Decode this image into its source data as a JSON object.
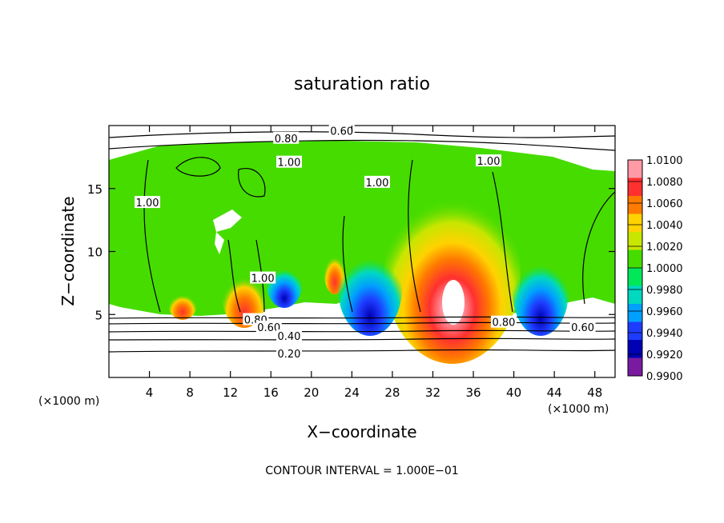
{
  "chart_data": {
    "type": "heatmap",
    "title": "saturation ratio",
    "xlabel": "X−coordinate",
    "ylabel": "Z−coordinate",
    "x_unit_label": "(×1000 m)",
    "x_unit_label_right": "(×1000 m)",
    "xlim": [
      0,
      50
    ],
    "ylim": [
      0,
      20
    ],
    "x_ticks": [
      4,
      8,
      12,
      16,
      20,
      24,
      28,
      32,
      36,
      40,
      44,
      48
    ],
    "y_ticks": [
      5,
      10,
      15
    ],
    "contour_interval_label": "CONTOUR INTERVAL = 1.000E−01",
    "colorbar": {
      "labels": [
        "1.0100",
        "1.0080",
        "1.0060",
        "1.0040",
        "1.0020",
        "1.0000",
        "0.9980",
        "0.9960",
        "0.9940",
        "0.9920",
        "0.9900"
      ],
      "colors": [
        "#ff9aa6",
        "#ff3030",
        "#ff7a00",
        "#ffd200",
        "#c8e600",
        "#46dc00",
        "#00e85a",
        "#00d8c0",
        "#00a0ff",
        "#1e3cff",
        "#0000b4",
        "#7a1aa0"
      ]
    },
    "contour_labels": [
      {
        "text": "0.60",
        "x": 23.0,
        "z": 19.6
      },
      {
        "text": "0.80",
        "x": 17.5,
        "z": 19.0
      },
      {
        "text": "1.00",
        "x": 17.8,
        "z": 17.1
      },
      {
        "text": "1.00",
        "x": 26.5,
        "z": 15.5
      },
      {
        "text": "1.00",
        "x": 37.5,
        "z": 17.2
      },
      {
        "text": "1.00",
        "x": 3.8,
        "z": 13.9
      },
      {
        "text": "1.00",
        "x": 15.2,
        "z": 7.9
      },
      {
        "text": "0.80",
        "x": 14.5,
        "z": 4.6
      },
      {
        "text": "0.60",
        "x": 15.8,
        "z": 4.0
      },
      {
        "text": "0.40",
        "x": 17.8,
        "z": 3.3
      },
      {
        "text": "0.20",
        "x": 17.8,
        "z": 1.9
      },
      {
        "text": "0.80",
        "x": 39.0,
        "z": 4.4
      },
      {
        "text": "0.60",
        "x": 46.8,
        "z": 4.0
      }
    ]
  }
}
